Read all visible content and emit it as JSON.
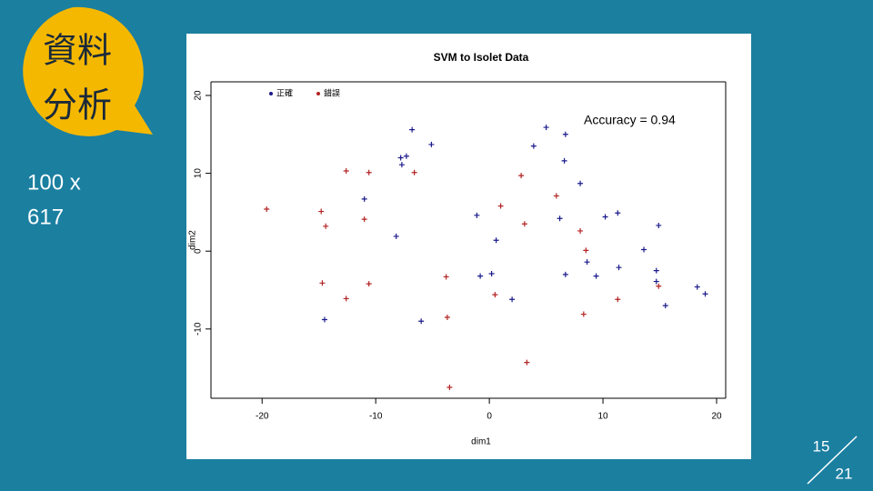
{
  "badge": {
    "line1": "資料",
    "line2": "分析"
  },
  "note": {
    "line1": "100 x",
    "line2": "617"
  },
  "page": {
    "current": 15,
    "total": 21
  },
  "chart_data": {
    "type": "scatter",
    "title": "SVM to Isolet Data",
    "x_label": "dim1",
    "y_label": "dim2",
    "annotation": "Accuracy = 0.94",
    "xlim": [
      -24.5,
      20.8
    ],
    "ylim": [
      -18.9,
      21.75
    ],
    "xticks": [
      -20,
      -10,
      0,
      10,
      20
    ],
    "yticks": [
      -10,
      0,
      10,
      20
    ],
    "series": [
      {
        "name": "正確",
        "color": "#1a1a8c",
        "x": [
          -6.8,
          -5.1,
          -7.8,
          -7.3,
          -7.7,
          -11.0,
          -8.2,
          -1.1,
          0.6,
          -0.8,
          0.2,
          -6.0,
          -14.5,
          5.0,
          3.9,
          6.7,
          6.6,
          8.0,
          6.2,
          10.2,
          11.3,
          14.9,
          13.6,
          8.6,
          9.4,
          6.7,
          11.4,
          14.7,
          14.7,
          15.5,
          18.3,
          19.0,
          2.0
        ],
        "values": [
          15.6,
          13.7,
          12.0,
          12.2,
          11.1,
          6.7,
          1.9,
          4.6,
          1.4,
          -3.2,
          -2.9,
          -9.0,
          -8.8,
          15.9,
          13.5,
          15.0,
          11.6,
          8.7,
          4.2,
          4.4,
          4.9,
          3.3,
          0.2,
          -1.4,
          -3.2,
          -3.0,
          -2.1,
          -2.5,
          -3.9,
          -7.0,
          -4.6,
          -5.5,
          -6.2
        ]
      },
      {
        "name": "錯誤",
        "color": "#b22222",
        "x": [
          -19.6,
          -14.8,
          -14.4,
          -12.6,
          -10.6,
          -11.0,
          -6.6,
          2.8,
          5.9,
          3.1,
          8.0,
          8.5,
          -12.6,
          -14.7,
          -10.6,
          -3.7,
          0.5,
          8.3,
          11.3,
          3.3,
          -3.5,
          1.0,
          14.9,
          -3.8
        ],
        "values": [
          5.4,
          5.1,
          3.2,
          10.3,
          10.1,
          4.1,
          10.1,
          9.7,
          7.1,
          3.5,
          2.6,
          0.1,
          -6.1,
          -4.1,
          -4.2,
          -8.5,
          -5.6,
          -8.1,
          -6.2,
          -14.3,
          -17.5,
          5.8,
          -4.5,
          -3.3
        ]
      }
    ]
  }
}
